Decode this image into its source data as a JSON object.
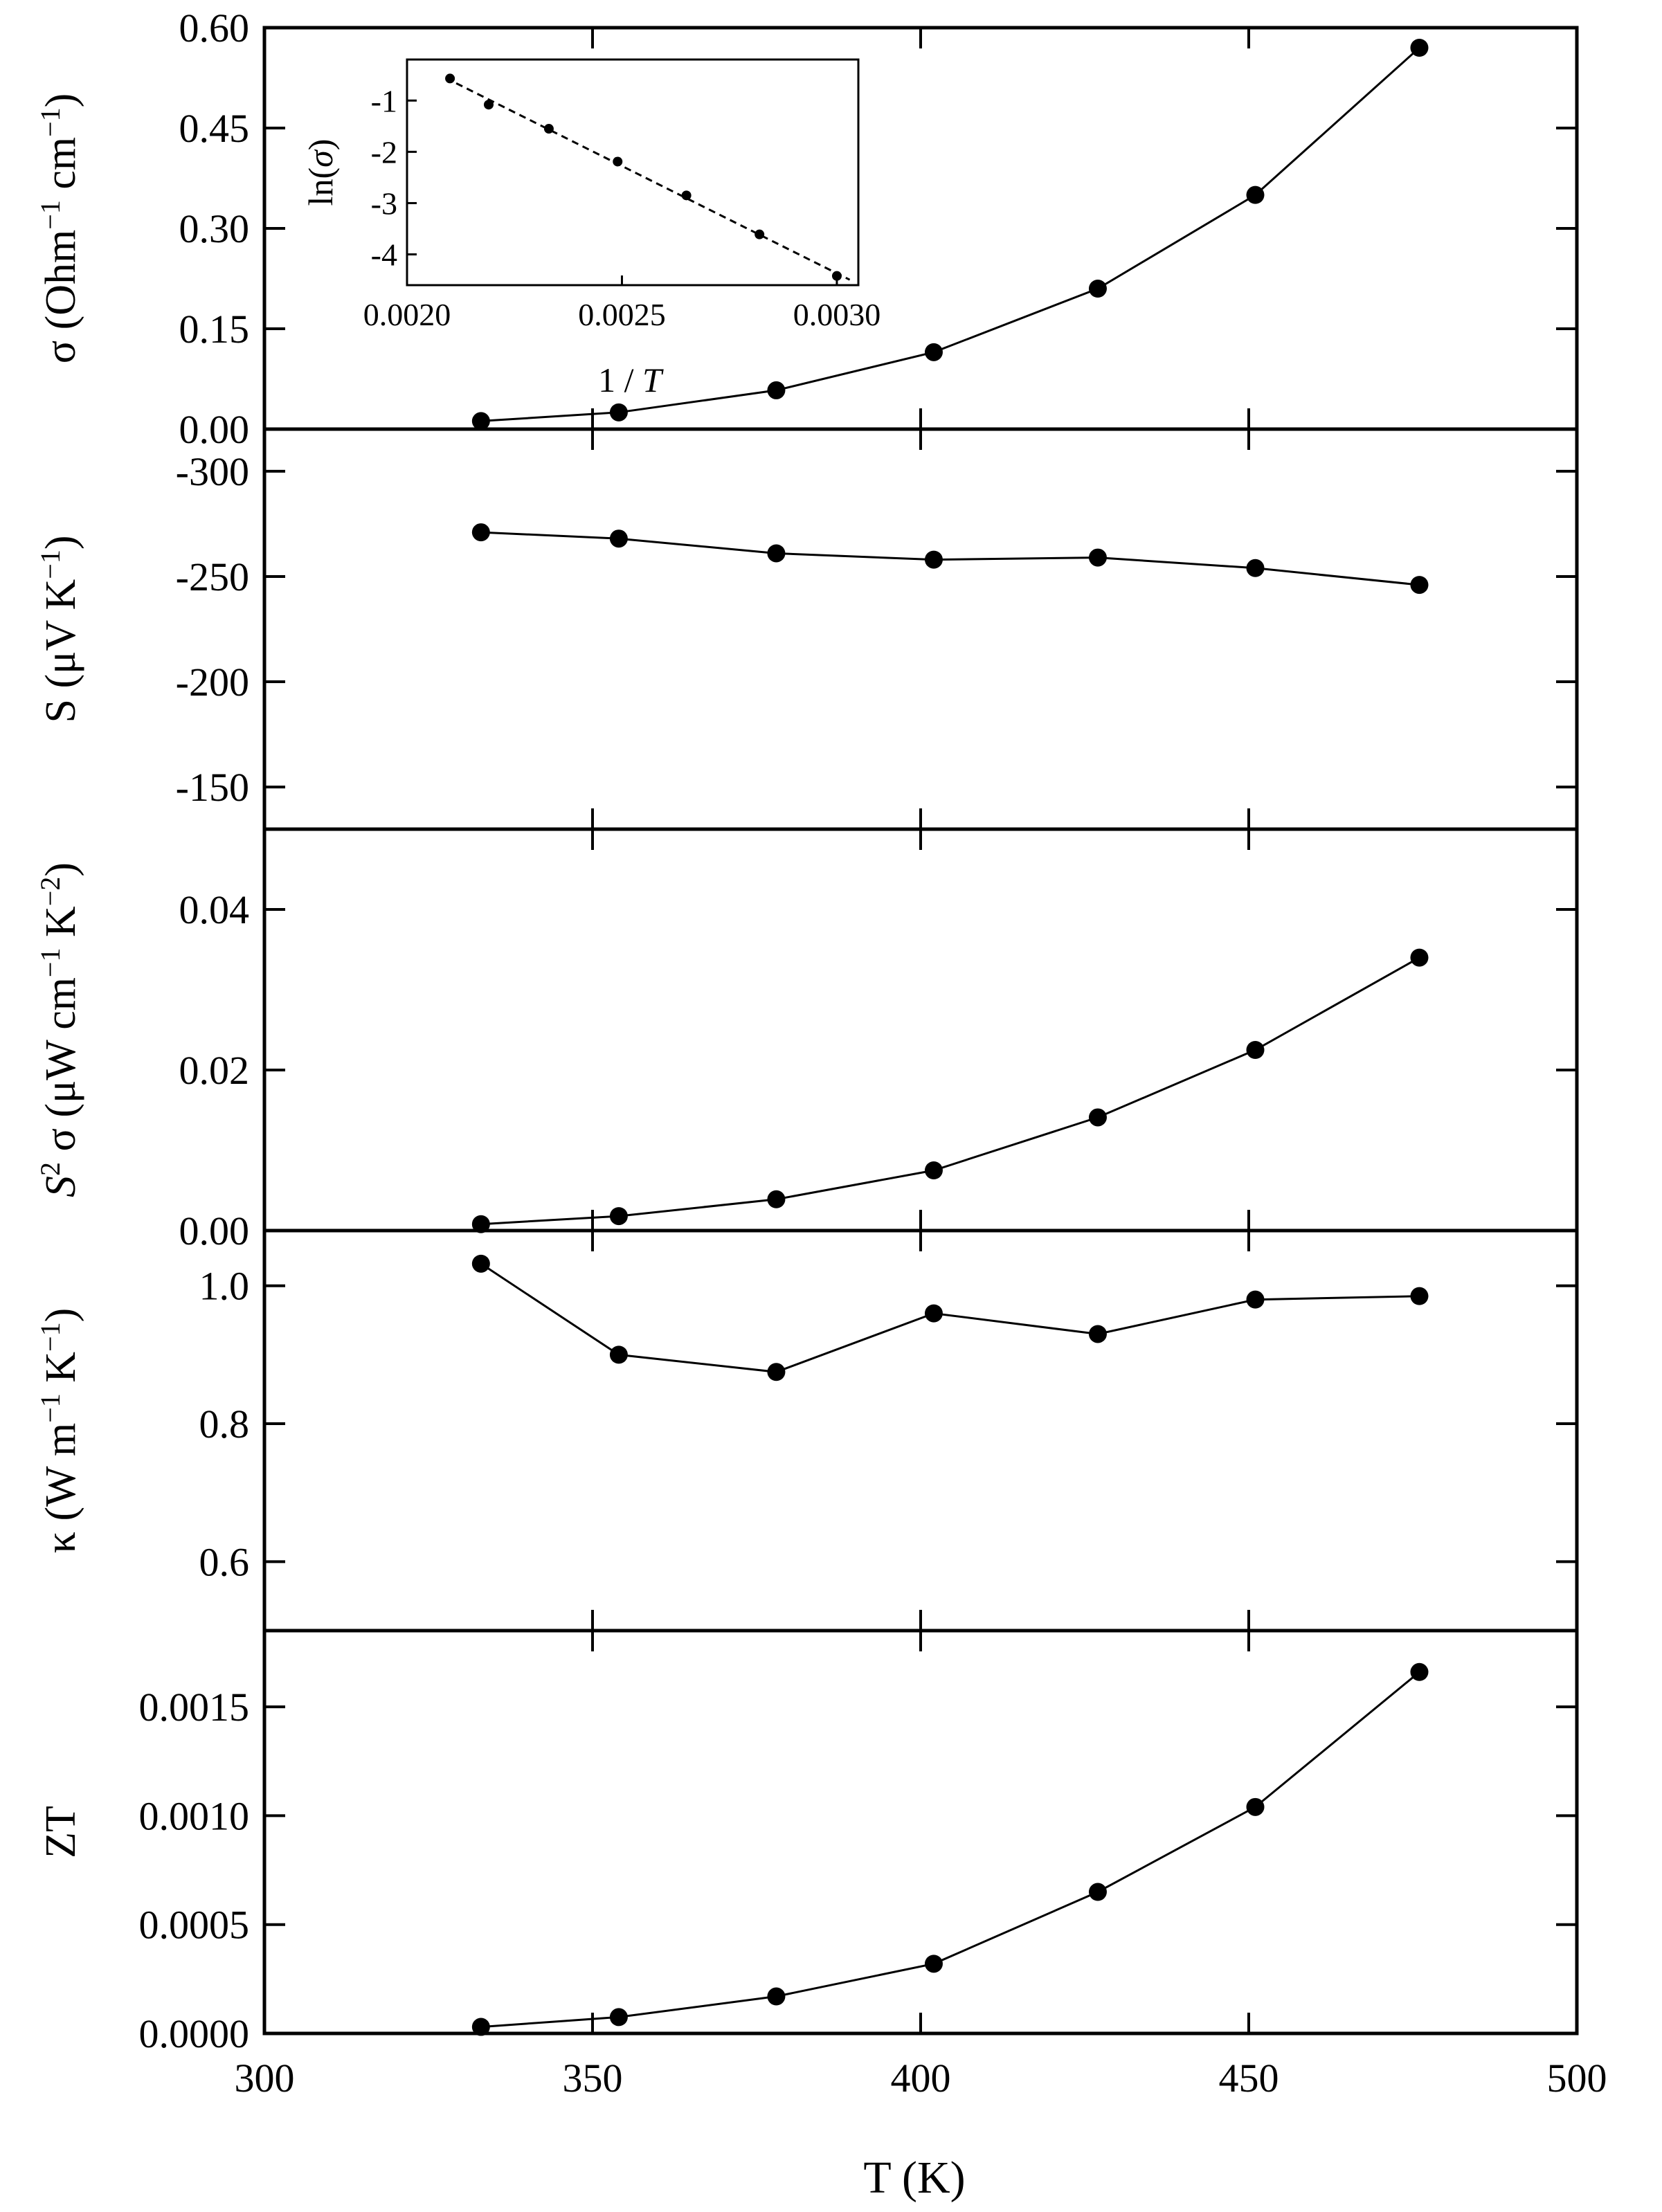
{
  "figure": {
    "x_axis": {
      "label": "T (K)",
      "range": [
        300,
        500
      ],
      "ticks": [
        "300",
        "350",
        "400",
        "450",
        "500"
      ]
    }
  },
  "chart_data": [
    {
      "type": "line",
      "id": "sigma",
      "ylabel": "σ (Ohm⁻¹ cm⁻¹)",
      "ylim": [
        0,
        0.6
      ],
      "yticks": [
        "0.00",
        "0.15",
        "0.30",
        "0.45",
        "0.60"
      ],
      "reversed_y": false,
      "x": [
        333,
        354,
        378,
        402,
        427,
        451,
        476
      ],
      "values": [
        0.012,
        0.025,
        0.058,
        0.115,
        0.21,
        0.35,
        0.57
      ],
      "marker": "filled-circle",
      "color": "#000000",
      "inset": {
        "type": "line",
        "xlabel": "1 / T",
        "ylabel": "ln(σ)",
        "xlim": [
          0.002,
          0.00305
        ],
        "ylim": [
          -4.6,
          -0.2
        ],
        "xticks": [
          "0.0020",
          "0.0025",
          "0.0030"
        ],
        "yticks": [
          "-1",
          "-2",
          "-3",
          "-4"
        ],
        "x": [
          0.0021,
          0.00219,
          0.00233,
          0.00249,
          0.00265,
          0.00282,
          0.003
        ],
        "values": [
          -0.57,
          -1.08,
          -1.55,
          -2.19,
          -2.85,
          -3.61,
          -4.42
        ],
        "line_style": "dashed"
      }
    },
    {
      "type": "line",
      "id": "seebeck",
      "ylabel": "S (μV K⁻¹)",
      "ylim": [
        -320,
        -130
      ],
      "yticks": [
        "-150",
        "-200",
        "-250",
        "-300"
      ],
      "reversed_y": true,
      "x": [
        333,
        354,
        378,
        402,
        427,
        451,
        476
      ],
      "values": [
        -271,
        -268,
        -261,
        -258,
        -259,
        -254,
        -246
      ],
      "marker": "filled-circle",
      "color": "#000000"
    },
    {
      "type": "line",
      "id": "power-factor",
      "ylabel": "S² σ (μW cm⁻¹ K⁻²)",
      "ylim": [
        0,
        0.05
      ],
      "yticks": [
        "0.00",
        "0.02",
        "0.04"
      ],
      "reversed_y": false,
      "x": [
        333,
        354,
        378,
        402,
        427,
        451,
        476
      ],
      "values": [
        0.0008,
        0.0018,
        0.0039,
        0.0075,
        0.0141,
        0.0225,
        0.034
      ],
      "marker": "filled-circle",
      "color": "#000000"
    },
    {
      "type": "line",
      "id": "kappa",
      "ylabel": "κ (W m⁻¹ K⁻¹)",
      "ylim": [
        0.5,
        1.08
      ],
      "yticks": [
        "0.6",
        "0.8",
        "1.0"
      ],
      "reversed_y": false,
      "x": [
        333,
        354,
        378,
        402,
        427,
        451,
        476
      ],
      "values": [
        1.032,
        0.9,
        0.875,
        0.96,
        0.93,
        0.98,
        0.985
      ],
      "marker": "filled-circle",
      "color": "#000000"
    },
    {
      "type": "line",
      "id": "zt",
      "ylabel": "ZT",
      "ylim": [
        0,
        0.00185
      ],
      "yticks": [
        "0.0000",
        "0.0005",
        "0.0010",
        "0.0015"
      ],
      "reversed_y": false,
      "x": [
        333,
        354,
        378,
        402,
        427,
        451,
        476
      ],
      "values": [
        3e-05,
        7.5e-05,
        0.00017,
        0.00032,
        0.00065,
        0.00104,
        0.00166
      ],
      "marker": "filled-circle",
      "color": "#000000"
    }
  ]
}
